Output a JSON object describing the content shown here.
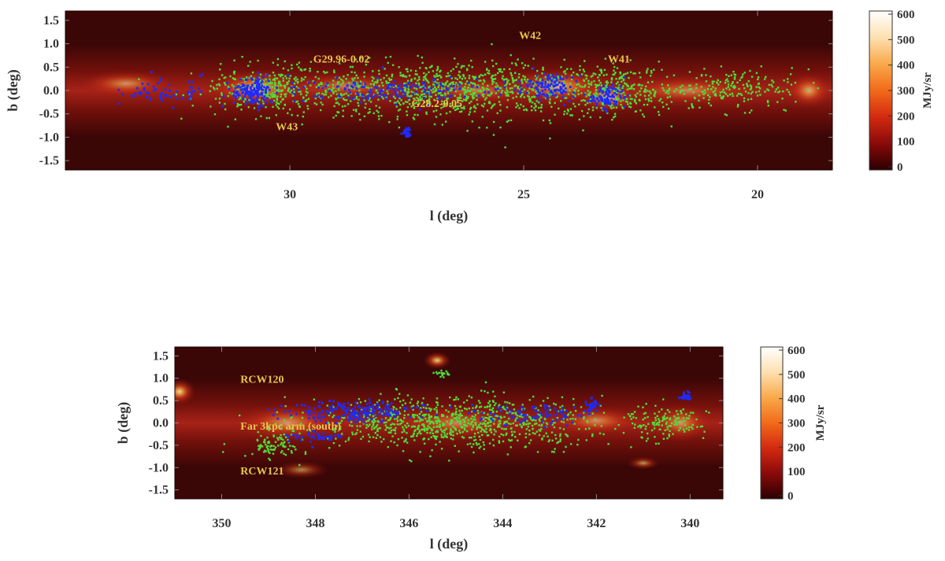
{
  "colors": {
    "background": "#ffffff",
    "map_base": "#3a0606",
    "green_sources": "#4ddf3a",
    "blue_sources": "#1d2bff",
    "annotation_text": "#e7c64a"
  },
  "chart_data": [
    {
      "type": "heatmap",
      "name": "panel-top",
      "xlabel": "l (deg)",
      "ylabel": "b (deg)",
      "xlim": [
        34.8,
        18.4
      ],
      "ylim": [
        -1.7,
        1.7
      ],
      "xticks": [
        30,
        25,
        20
      ],
      "yticks": [
        1.5,
        1.0,
        0.5,
        0.0,
        -0.5,
        -1.0,
        -1.5
      ],
      "ytick_labels": [
        "1.5",
        "1.0",
        "0.5",
        "0.0",
        "-0.5",
        "-1.0",
        "-1.5"
      ],
      "colorbar": {
        "label": "MJy/sr",
        "range": [
          0,
          600
        ],
        "ticks": [
          600,
          500,
          400,
          300,
          200,
          100,
          0
        ],
        "colors": [
          "#2a0000",
          "#8a0a0a",
          "#d22a10",
          "#f26a1a",
          "#f9a94a",
          "#fde0b0",
          "#ffffff"
        ]
      },
      "annotations": [
        {
          "text": "G29.96-0.02",
          "l": 29.5,
          "b": 0.6
        },
        {
          "text": "W42",
          "l": 25.1,
          "b": 1.1
        },
        {
          "text": "W41",
          "l": 23.2,
          "b": 0.6
        },
        {
          "text": "G28.2-0.05",
          "l": 27.4,
          "b": -0.35
        },
        {
          "text": "W43",
          "l": 30.3,
          "b": -0.85
        }
      ],
      "emission_blobs": [
        {
          "l": 30.7,
          "b": 0.05,
          "sl": 1.1,
          "sb": 0.42,
          "a": 0.85
        },
        {
          "l": 24.3,
          "b": 0.1,
          "sl": 1.2,
          "sb": 0.4,
          "a": 0.75
        },
        {
          "l": 23.2,
          "b": -0.15,
          "sl": 0.7,
          "sb": 0.35,
          "a": 0.8
        },
        {
          "l": 33.5,
          "b": 0.15,
          "sl": 1.1,
          "sb": 0.3,
          "a": 0.55
        },
        {
          "l": 28.8,
          "b": 0.1,
          "sl": 1.4,
          "sb": 0.3,
          "a": 0.45
        },
        {
          "l": 26.0,
          "b": 0.0,
          "sl": 1.3,
          "sb": 0.28,
          "a": 0.4
        },
        {
          "l": 21.5,
          "b": 0.0,
          "sl": 1.6,
          "sb": 0.35,
          "a": 0.45
        },
        {
          "l": 18.9,
          "b": 0.0,
          "sl": 0.5,
          "sb": 0.4,
          "a": 0.65
        }
      ],
      "source_clusters": {
        "green": [
          {
            "l": 26.6,
            "b": 0.0,
            "sl": 4.2,
            "sb": 0.55,
            "n": 1100
          },
          {
            "l": 30.5,
            "b": 0.0,
            "sl": 1.2,
            "sb": 0.45,
            "n": 240
          },
          {
            "l": 23.0,
            "b": 0.0,
            "sl": 1.2,
            "sb": 0.45,
            "n": 260
          },
          {
            "l": 20.5,
            "b": 0.05,
            "sl": 1.3,
            "sb": 0.4,
            "n": 180
          }
        ],
        "blue": [
          {
            "l": 30.8,
            "b": 0.0,
            "sl": 0.45,
            "sb": 0.28,
            "n": 150
          },
          {
            "l": 24.4,
            "b": 0.1,
            "sl": 0.5,
            "sb": 0.25,
            "n": 110
          },
          {
            "l": 23.2,
            "b": -0.15,
            "sl": 0.35,
            "sb": 0.22,
            "n": 90
          },
          {
            "l": 27.5,
            "b": -0.9,
            "sl": 0.08,
            "sb": 0.1,
            "n": 25
          },
          {
            "l": 27.5,
            "b": 0.0,
            "sl": 2.8,
            "sb": 0.25,
            "n": 170
          },
          {
            "l": 32.7,
            "b": 0.0,
            "sl": 0.8,
            "sb": 0.3,
            "n": 60
          }
        ]
      }
    },
    {
      "type": "heatmap",
      "name": "panel-bottom",
      "xlabel": "l (deg)",
      "ylabel": "b (deg)",
      "xlim": [
        351.0,
        339.3
      ],
      "ylim": [
        -1.7,
        1.7
      ],
      "xticks": [
        350,
        348,
        346,
        344,
        342,
        340
      ],
      "yticks": [
        1.5,
        1.0,
        0.5,
        0.0,
        -0.5,
        -1.0,
        -1.5
      ],
      "ytick_labels": [
        "1.5",
        "1.0",
        "0.5",
        "0.0",
        "-0.5",
        "-1.0",
        "-1.5"
      ],
      "colorbar": {
        "label": "MJy/sr",
        "range": [
          0,
          600
        ],
        "ticks": [
          600,
          500,
          400,
          300,
          200,
          100,
          0
        ],
        "colors": [
          "#2a0000",
          "#8a0a0a",
          "#d22a10",
          "#f26a1a",
          "#f9a94a",
          "#fde0b0",
          "#ffffff"
        ]
      },
      "annotations": [
        {
          "text": "RCW120",
          "l": 349.6,
          "b": 0.9
        },
        {
          "text": "Far 3kpc arm (south)",
          "l": 349.6,
          "b": -0.15
        },
        {
          "text": "RCW121",
          "l": 349.6,
          "b": -1.15
        }
      ],
      "emission_blobs": [
        {
          "l": 350.9,
          "b": 0.7,
          "sl": 0.35,
          "sb": 0.3,
          "a": 0.9
        },
        {
          "l": 348.6,
          "b": 0.0,
          "sl": 1.2,
          "sb": 0.45,
          "a": 0.55
        },
        {
          "l": 345.4,
          "b": 1.4,
          "sl": 0.3,
          "sb": 0.2,
          "a": 0.85
        },
        {
          "l": 345.0,
          "b": 0.0,
          "sl": 1.4,
          "sb": 0.4,
          "a": 0.45
        },
        {
          "l": 342.0,
          "b": 0.05,
          "sl": 1.0,
          "sb": 0.35,
          "a": 0.5
        },
        {
          "l": 340.2,
          "b": 0.0,
          "sl": 0.7,
          "sb": 0.45,
          "a": 0.55
        },
        {
          "l": 341.0,
          "b": -0.9,
          "sl": 0.35,
          "sb": 0.15,
          "a": 0.6
        },
        {
          "l": 348.3,
          "b": -1.05,
          "sl": 0.6,
          "sb": 0.2,
          "a": 0.55
        }
      ],
      "source_clusters": {
        "green": [
          {
            "l": 345.0,
            "b": 0.0,
            "sl": 3.1,
            "sb": 0.5,
            "n": 900
          },
          {
            "l": 348.9,
            "b": -0.5,
            "sl": 0.5,
            "sb": 0.3,
            "n": 90
          },
          {
            "l": 345.3,
            "b": 1.1,
            "sl": 0.18,
            "sb": 0.05,
            "n": 20
          },
          {
            "l": 340.5,
            "b": 0.0,
            "sl": 0.8,
            "sb": 0.35,
            "n": 130
          }
        ],
        "blue": [
          {
            "l": 347.2,
            "b": 0.25,
            "sl": 1.4,
            "sb": 0.2,
            "n": 190
          },
          {
            "l": 343.5,
            "b": 0.2,
            "sl": 1.3,
            "sb": 0.2,
            "n": 80
          },
          {
            "l": 342.1,
            "b": 0.4,
            "sl": 0.15,
            "sb": 0.15,
            "n": 30
          },
          {
            "l": 340.1,
            "b": 0.6,
            "sl": 0.12,
            "sb": 0.08,
            "n": 25
          },
          {
            "l": 348.0,
            "b": -0.3,
            "sl": 0.6,
            "sb": 0.15,
            "n": 40
          }
        ]
      }
    }
  ]
}
